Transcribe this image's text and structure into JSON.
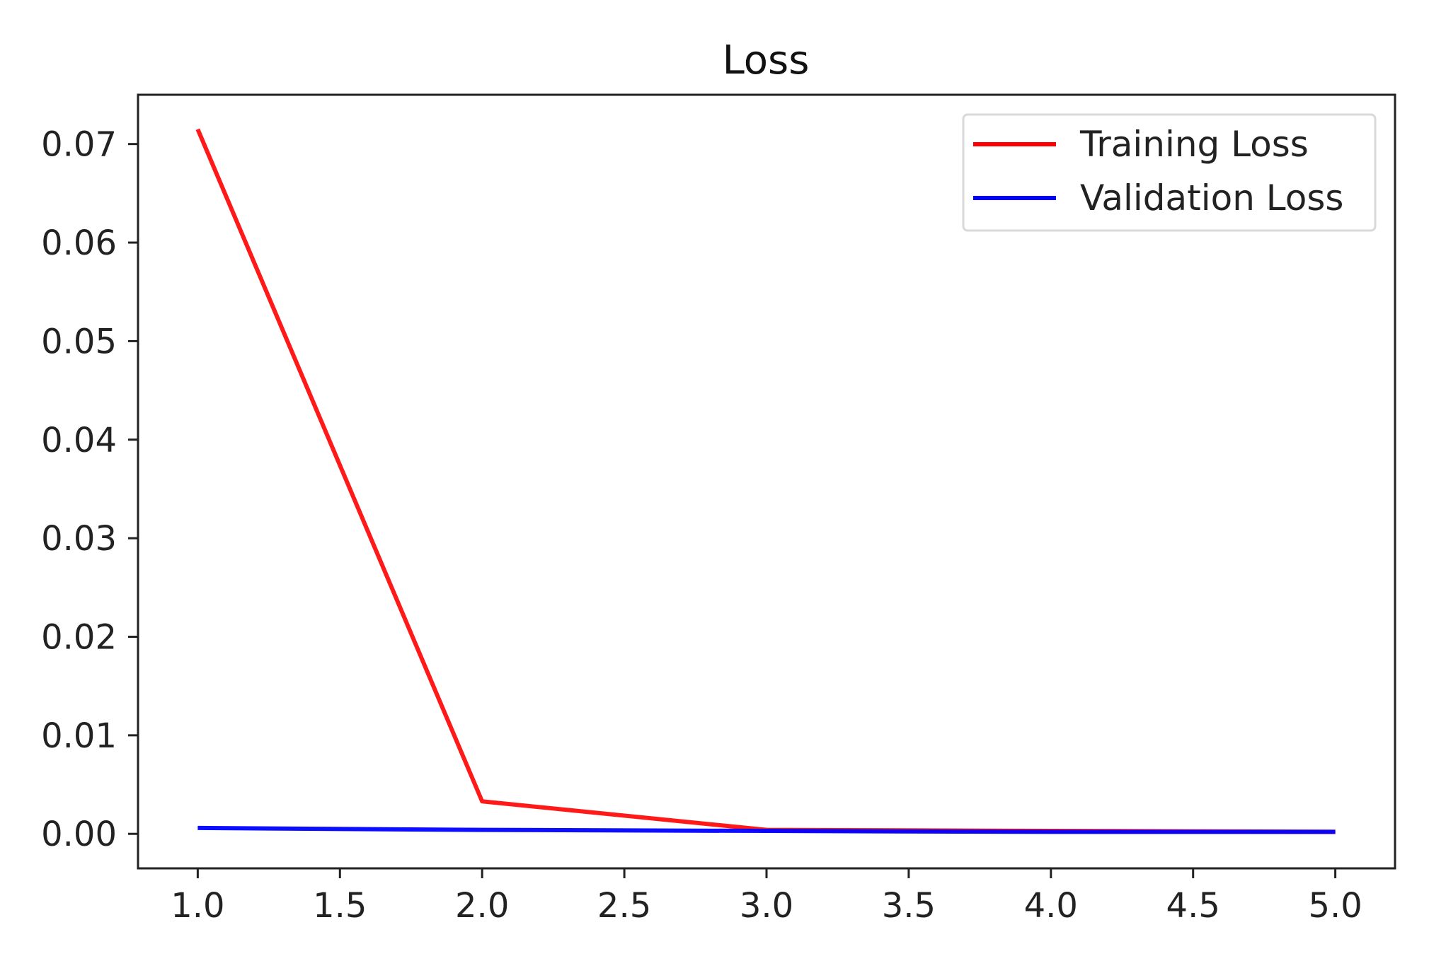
{
  "chart_data": {
    "type": "line",
    "title": "Loss",
    "xlabel": "",
    "ylabel": "",
    "x": [
      1,
      2,
      3,
      4,
      5
    ],
    "xlim": [
      0.79,
      5.21
    ],
    "ylim": [
      -0.0035,
      0.075
    ],
    "xticks": [
      "1.0",
      "1.5",
      "2.0",
      "2.5",
      "3.0",
      "3.5",
      "4.0",
      "4.5",
      "5.0"
    ],
    "xtick_values": [
      1.0,
      1.5,
      2.0,
      2.5,
      3.0,
      3.5,
      4.0,
      4.5,
      5.0
    ],
    "yticks": [
      "0.00",
      "0.01",
      "0.02",
      "0.03",
      "0.04",
      "0.05",
      "0.06",
      "0.07"
    ],
    "ytick_values": [
      0.0,
      0.01,
      0.02,
      0.03,
      0.04,
      0.05,
      0.06,
      0.07
    ],
    "series": [
      {
        "name": "Training Loss",
        "color": "#ff0000",
        "values": [
          0.0715,
          0.0033,
          0.0004,
          0.0003,
          0.0002
        ]
      },
      {
        "name": "Validation Loss",
        "color": "#0000ff",
        "values": [
          0.0006,
          0.0004,
          0.0003,
          0.0002,
          0.0002
        ]
      }
    ],
    "grid": false,
    "legend_position": "top-right"
  }
}
